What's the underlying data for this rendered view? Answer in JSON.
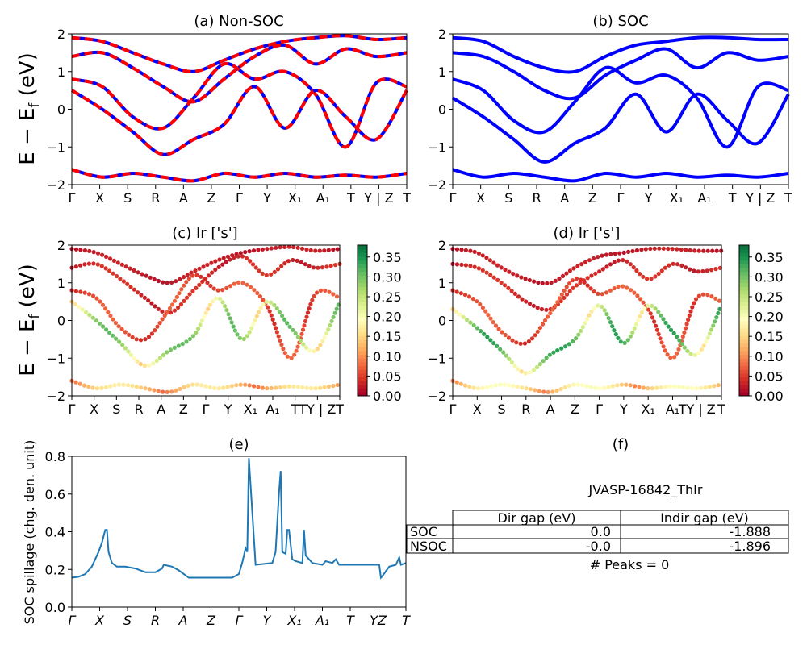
{
  "figure": {
    "ylabel_top": "E − E",
    "ylabel_sub": "f",
    "ylabel_unit": " (eV)",
    "material_id": "JVASP-16842_ThIr",
    "peaks_text": "# Peaks = 0"
  },
  "colors": {
    "red": "#ff0000",
    "blue": "#0000ff",
    "line": "#1f77b4",
    "cmap": [
      "#a50026",
      "#d73027",
      "#f46d43",
      "#fdae61",
      "#fee08b",
      "#ffffbf",
      "#d9ef8b",
      "#a6d96a",
      "#66bd63",
      "#1a9850",
      "#006837"
    ]
  },
  "chart_data": [
    {
      "id": "a",
      "type": "line",
      "title": "(a) Non-SOC",
      "ylim": [
        -2,
        2
      ],
      "yticks": [
        "2",
        "1",
        "0",
        "−1",
        "−2"
      ],
      "kpath_labels": [
        "Γ",
        "X",
        "S",
        "R",
        "A",
        "Z",
        "Γ",
        "Y",
        "X₁",
        "A₁",
        "T",
        "Y | Z",
        "T"
      ],
      "series": [
        {
          "values": [
            1.9,
            1.8,
            1.5,
            1.2,
            1.0,
            1.3,
            1.6,
            1.8,
            1.9,
            1.95,
            1.85,
            1.9
          ]
        },
        {
          "values": [
            1.4,
            1.5,
            1.1,
            0.6,
            0.2,
            0.8,
            1.4,
            1.7,
            1.2,
            1.6,
            1.4,
            1.5
          ]
        },
        {
          "values": [
            0.8,
            0.6,
            -0.2,
            -0.5,
            0.3,
            1.2,
            0.8,
            1.0,
            0.4,
            -1.0,
            0.7,
            0.6
          ]
        },
        {
          "values": [
            0.5,
            0.0,
            -0.6,
            -1.2,
            -0.8,
            -0.4,
            0.6,
            -0.5,
            0.5,
            -0.2,
            -0.8,
            0.5
          ]
        },
        {
          "values": [
            -1.6,
            -1.8,
            -1.7,
            -1.8,
            -1.9,
            -1.7,
            -1.8,
            -1.7,
            -1.8,
            -1.75,
            -1.8,
            -1.7
          ]
        }
      ]
    },
    {
      "id": "b",
      "type": "line",
      "title": "(b) SOC",
      "ylim": [
        -2,
        2
      ],
      "yticks": [
        "2",
        "1",
        "0",
        "−1",
        "−2"
      ],
      "kpath_labels": [
        "Γ",
        "X",
        "S",
        "R",
        "A",
        "Z",
        "Γ",
        "Y",
        "X₁",
        "A₁",
        "T",
        "Y | Z",
        "T"
      ],
      "series": [
        {
          "values": [
            1.9,
            1.8,
            1.4,
            1.1,
            1.0,
            1.4,
            1.7,
            1.8,
            1.9,
            1.9,
            1.85,
            1.85
          ]
        },
        {
          "values": [
            1.5,
            1.4,
            1.0,
            0.5,
            0.3,
            0.9,
            1.3,
            1.6,
            1.1,
            1.5,
            1.3,
            1.4
          ]
        },
        {
          "values": [
            0.8,
            0.5,
            -0.3,
            -0.6,
            0.2,
            1.1,
            0.7,
            0.9,
            0.3,
            -1.0,
            0.6,
            0.5
          ]
        },
        {
          "values": [
            0.3,
            -0.2,
            -0.8,
            -1.4,
            -0.9,
            -0.5,
            0.4,
            -0.6,
            0.4,
            -0.3,
            -0.9,
            0.4
          ]
        },
        {
          "values": [
            -1.6,
            -1.8,
            -1.7,
            -1.8,
            -1.9,
            -1.7,
            -1.8,
            -1.7,
            -1.8,
            -1.75,
            -1.8,
            -1.7
          ]
        }
      ]
    },
    {
      "id": "c",
      "type": "scatter",
      "title": "(c)  Ir ['s']",
      "ylim": [
        -2,
        2
      ],
      "yticks": [
        "2",
        "1",
        "0",
        "−1",
        "−2"
      ],
      "kpath_labels": [
        "Γ",
        "X",
        "S",
        "R",
        "A",
        "Z",
        "Γ",
        "Y",
        "X₁",
        "A₁",
        "T",
        "TY | Z",
        "T"
      ],
      "colorbar": {
        "min": 0.0,
        "max": 0.38,
        "ticks": [
          "0.35",
          "0.30",
          "0.25",
          "0.20",
          "0.15",
          "0.10",
          "0.05",
          "0.00"
        ]
      },
      "series": [
        {
          "values": [
            1.9,
            1.8,
            1.5,
            1.2,
            1.0,
            1.3,
            1.6,
            1.8,
            1.9,
            1.95,
            1.85,
            1.9
          ],
          "weight": 0.02
        },
        {
          "values": [
            1.4,
            1.5,
            1.1,
            0.6,
            0.2,
            0.8,
            1.4,
            1.7,
            1.2,
            1.6,
            1.4,
            1.5
          ],
          "weight": 0.03
        },
        {
          "values": [
            0.8,
            0.6,
            -0.2,
            -0.5,
            0.3,
            1.2,
            0.8,
            1.0,
            0.4,
            -1.0,
            0.7,
            0.6
          ],
          "weight": 0.05
        },
        {
          "values": [
            0.5,
            0.0,
            -0.6,
            -1.2,
            -0.8,
            -0.4,
            0.6,
            -0.5,
            0.5,
            -0.2,
            -0.8,
            0.5
          ],
          "weight": 0.22
        },
        {
          "values": [
            -1.6,
            -1.8,
            -1.7,
            -1.8,
            -1.9,
            -1.7,
            -1.8,
            -1.7,
            -1.8,
            -1.75,
            -1.8,
            -1.7
          ],
          "weight": 0.12
        }
      ]
    },
    {
      "id": "d",
      "type": "scatter",
      "title": "(d) Ir ['s']",
      "ylim": [
        -2,
        2
      ],
      "yticks": [
        "2",
        "1",
        "0",
        "−1",
        "−2"
      ],
      "kpath_labels": [
        "Γ",
        "X",
        "S",
        "R",
        "A",
        "Z",
        "Γ",
        "Y",
        "X₁",
        "A₁",
        "TY | Z",
        "T"
      ],
      "colorbar": {
        "min": 0.0,
        "max": 0.38,
        "ticks": [
          "0.35",
          "0.30",
          "0.25",
          "0.20",
          "0.15",
          "0.10",
          "0.05",
          "0.00"
        ]
      },
      "series": [
        {
          "values": [
            1.9,
            1.8,
            1.4,
            1.1,
            1.0,
            1.4,
            1.7,
            1.8,
            1.9,
            1.9,
            1.85,
            1.85
          ],
          "weight": 0.02
        },
        {
          "values": [
            1.5,
            1.4,
            1.0,
            0.5,
            0.3,
            0.9,
            1.3,
            1.6,
            1.1,
            1.5,
            1.3,
            1.4
          ],
          "weight": 0.03
        },
        {
          "values": [
            0.8,
            0.5,
            -0.3,
            -0.6,
            0.2,
            1.1,
            0.7,
            0.9,
            0.3,
            -1.0,
            0.6,
            0.5
          ],
          "weight": 0.05
        },
        {
          "values": [
            0.3,
            -0.2,
            -0.8,
            -1.4,
            -0.9,
            -0.5,
            0.4,
            -0.6,
            0.4,
            -0.3,
            -0.9,
            0.4
          ],
          "weight": 0.24
        },
        {
          "values": [
            -1.6,
            -1.8,
            -1.7,
            -1.8,
            -1.9,
            -1.7,
            -1.8,
            -1.7,
            -1.8,
            -1.75,
            -1.8,
            -1.7
          ],
          "weight": 0.14
        }
      ]
    },
    {
      "id": "e",
      "type": "line",
      "title": "(e)",
      "ylabel": "SOC spillage (chg. den. unit)",
      "ylim": [
        0.0,
        0.82
      ],
      "yticks": [
        "0.8",
        "0.6",
        "0.4",
        "0.2",
        "0.0"
      ],
      "kpath_labels": [
        "Γ",
        "X",
        "S",
        "R",
        "A",
        "Z",
        "Γ",
        "Y",
        "X₁",
        "A₁",
        "T",
        "YZ",
        "T"
      ],
      "x": [
        0.0,
        0.02,
        0.04,
        0.06,
        0.08,
        0.09,
        0.1,
        0.105,
        0.11,
        0.12,
        0.135,
        0.16,
        0.19,
        0.22,
        0.25,
        0.27,
        0.275,
        0.3,
        0.32,
        0.35,
        0.4,
        0.45,
        0.48,
        0.5,
        0.51,
        0.52,
        0.525,
        0.53,
        0.55,
        0.6,
        0.61,
        0.62,
        0.625,
        0.63,
        0.64,
        0.645,
        0.65,
        0.66,
        0.67,
        0.69,
        0.695,
        0.7,
        0.72,
        0.75,
        0.76,
        0.78,
        0.79,
        0.8,
        0.85,
        0.9,
        0.92,
        0.925,
        0.93,
        0.95,
        0.97,
        0.98,
        0.985,
        1.0
      ],
      "values": [
        0.16,
        0.165,
        0.18,
        0.22,
        0.3,
        0.35,
        0.42,
        0.42,
        0.3,
        0.24,
        0.22,
        0.22,
        0.21,
        0.19,
        0.19,
        0.21,
        0.23,
        0.22,
        0.2,
        0.16,
        0.16,
        0.16,
        0.16,
        0.18,
        0.24,
        0.32,
        0.3,
        0.81,
        0.23,
        0.24,
        0.3,
        0.62,
        0.74,
        0.3,
        0.29,
        0.42,
        0.42,
        0.26,
        0.25,
        0.24,
        0.42,
        0.28,
        0.24,
        0.23,
        0.25,
        0.24,
        0.26,
        0.23,
        0.23,
        0.23,
        0.23,
        0.16,
        0.17,
        0.22,
        0.23,
        0.27,
        0.23,
        0.24
      ]
    }
  ],
  "table": {
    "title": "(f)",
    "headers": [
      "",
      "Dir gap (eV)",
      "Indir gap (eV)"
    ],
    "rows": [
      [
        "SOC",
        "0.0",
        "-1.888"
      ],
      [
        "NSOC",
        "-0.0",
        "-1.896"
      ]
    ]
  }
}
